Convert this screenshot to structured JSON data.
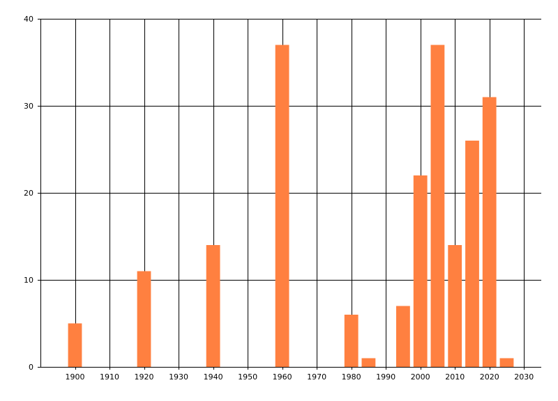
{
  "chart_data": {
    "type": "bar",
    "x": [
      1900,
      1920,
      1940,
      1960,
      1980,
      1985,
      1995,
      2000,
      2005,
      2010,
      2015,
      2020,
      2025
    ],
    "values": [
      5,
      11,
      14,
      37,
      6,
      1,
      7,
      22,
      37,
      14,
      26,
      31,
      1
    ],
    "xlim": [
      1890,
      2035
    ],
    "ylim": [
      0,
      40
    ],
    "xticks": [
      1900,
      1910,
      1920,
      1930,
      1940,
      1950,
      1960,
      1970,
      1980,
      1990,
      2000,
      2010,
      2020,
      2030
    ],
    "yticks": [
      0,
      10,
      20,
      30,
      40
    ],
    "bar_width_years": 4,
    "grid": true,
    "legend": "none",
    "title": "",
    "xlabel": "",
    "ylabel": "",
    "colors": {
      "bar": "#ff8040",
      "grid": "#000000",
      "axis": "#000000"
    }
  }
}
